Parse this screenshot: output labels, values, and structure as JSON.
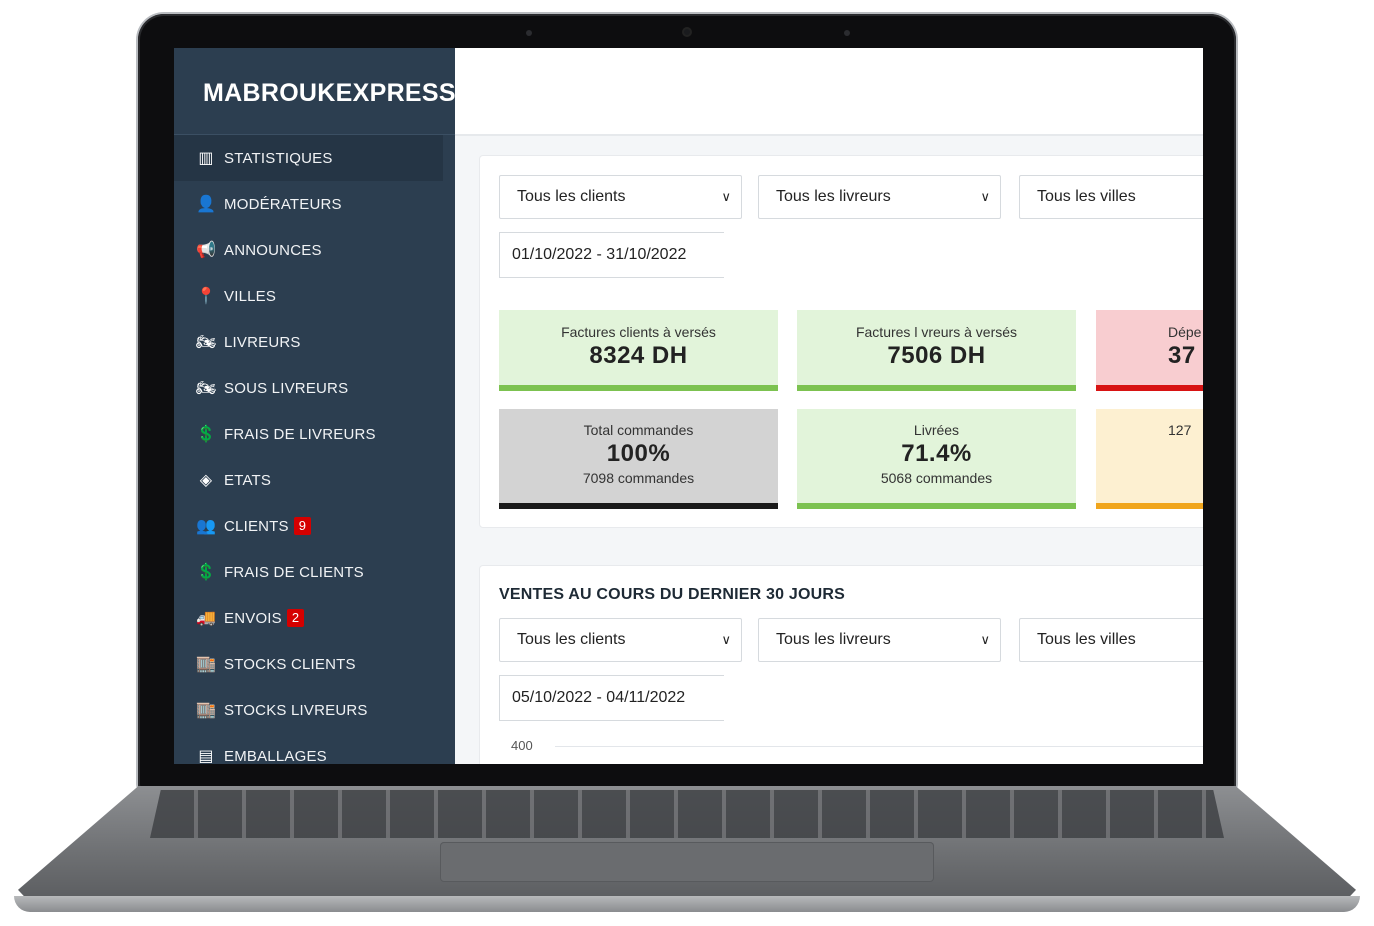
{
  "app": {
    "brand": "MABROUKEXPRESS"
  },
  "sidebar": {
    "items": [
      {
        "label": "STATISTIQUES",
        "icon": "bar-chart-icon",
        "glyph": "▥",
        "active": true
      },
      {
        "label": "MODÉRATEURS",
        "icon": "user-tie-icon",
        "glyph": "👤"
      },
      {
        "label": "ANNOUNCES",
        "icon": "megaphone-icon",
        "glyph": "📢"
      },
      {
        "label": "VILLES",
        "icon": "map-pin-icon",
        "glyph": "📍"
      },
      {
        "label": "LIVREURS",
        "icon": "motorcycle-icon",
        "glyph": "🏍"
      },
      {
        "label": "SOUS LIVREURS",
        "icon": "motorcycle-icon",
        "glyph": "🏍"
      },
      {
        "label": "FRAIS DE LIVREURS",
        "icon": "hand-dollar-icon",
        "glyph": "💲"
      },
      {
        "label": "ETATS",
        "icon": "layers-icon",
        "glyph": "◈"
      },
      {
        "label": "CLIENTS",
        "icon": "users-icon",
        "glyph": "👥",
        "badge": "9"
      },
      {
        "label": "FRAIS DE CLIENTS",
        "icon": "hand-dollar-icon",
        "glyph": "💲"
      },
      {
        "label": "ENVOIS",
        "icon": "truck-icon",
        "glyph": "🚚",
        "badge": "2"
      },
      {
        "label": "STOCKS CLIENTS",
        "icon": "warehouse-icon",
        "glyph": "🏬"
      },
      {
        "label": "STOCKS LIVREURS",
        "icon": "warehouse-icon",
        "glyph": "🏬"
      },
      {
        "label": "EMBALLAGES",
        "icon": "box-icon",
        "glyph": "▤"
      }
    ]
  },
  "filters": {
    "clients": "Tous les clients",
    "livreurs": "Tous les livreurs",
    "villes": "Tous les villes",
    "date_range": "01/10/2022 - 31/10/2022"
  },
  "stats": [
    {
      "label": "Factures clients à versés",
      "value": "8324 DH",
      "bg": "#e2f4da",
      "bar": "#7cc250"
    },
    {
      "label": "Factures l vreurs à versés",
      "value": "7506 DH",
      "bg": "#e2f4da",
      "bar": "#7cc250"
    },
    {
      "label": "Dépe",
      "value": "37",
      "bg": "#f8cdd0",
      "bar": "#d81313"
    },
    {
      "label": "Total commandes",
      "value": "100%",
      "sub": "7098 commandes",
      "bg": "#d3d3d3",
      "bar": "#1a1a1a"
    },
    {
      "label": "Livrées",
      "value": "71.4%",
      "sub": "5068 commandes",
      "bg": "#e2f4da",
      "bar": "#7cc250"
    },
    {
      "label": "",
      "value": "",
      "sub": "127",
      "bg": "#fdf0d1",
      "bar": "#f0a51c"
    }
  ],
  "sales": {
    "title": "VENTES AU COURS DU DERNIER 30 JOURS",
    "clients": "Tous les clients",
    "livreurs": "Tous les livreurs",
    "villes": "Tous les villes",
    "date_range": "05/10/2022 - 04/11/2022",
    "y_tick_top": "400"
  }
}
